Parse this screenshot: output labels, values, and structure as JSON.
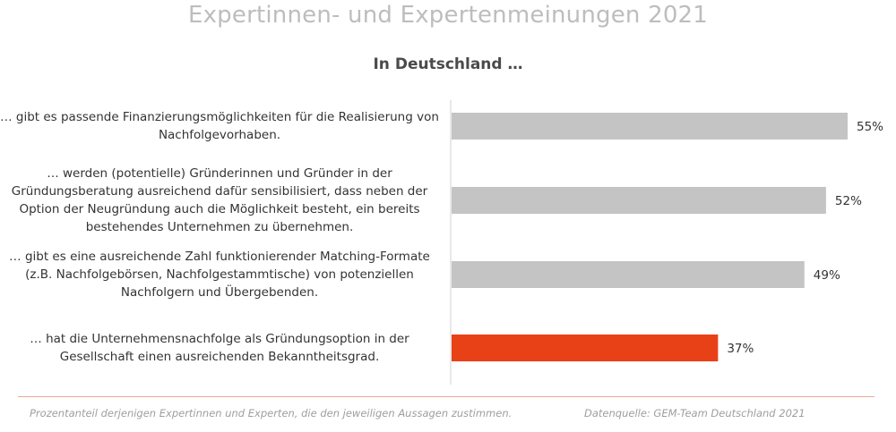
{
  "title": "Expertinnen- und Expertenmeinungen 2021",
  "subtitle": "In Deutschland …",
  "footer": {
    "note": "Prozentanteil derjenigen Expertinnen und Experten, die den jeweiligen Aussagen zustimmen.",
    "source": "Datenquelle: GEM-Team Deutschland 2021"
  },
  "colors": {
    "bar_default": "#c4c4c4",
    "bar_highlight": "#e84118",
    "axis": "#d0d0d0",
    "rule": "#f0a793"
  },
  "chart_data": {
    "type": "bar",
    "orientation": "horizontal",
    "title": "Expertinnen- und Expertenmeinungen 2021",
    "subtitle": "In Deutschland …",
    "categories": [
      "… gibt es passende Finanzierungsmöglichkeiten für die Realisierung von Nachfolgevorhaben.",
      "… werden (potentielle) Gründerinnen und Gründer in der Gründungsberatung ausreichend dafür sensibilisiert, dass neben der Option der Neugründung auch die Möglichkeit besteht, ein bereits bestehendes Unternehmen zu übernehmen.",
      "… gibt es eine ausreichende Zahl funktionierender Matching-Formate (z.B. Nachfolgebörsen, Nachfolgestammtische) von potenziellen Nachfolgern und Übergebenden.",
      "… hat die Unternehmensnachfolge als Gründungsoption in der Gesellschaft einen ausreichenden Bekanntheitsgrad."
    ],
    "values": [
      55,
      52,
      49,
      37
    ],
    "value_labels": [
      "55%",
      "52%",
      "49%",
      "37%"
    ],
    "highlight_index": 3,
    "xlim": [
      0,
      60
    ],
    "grid": false,
    "legend": "none"
  }
}
